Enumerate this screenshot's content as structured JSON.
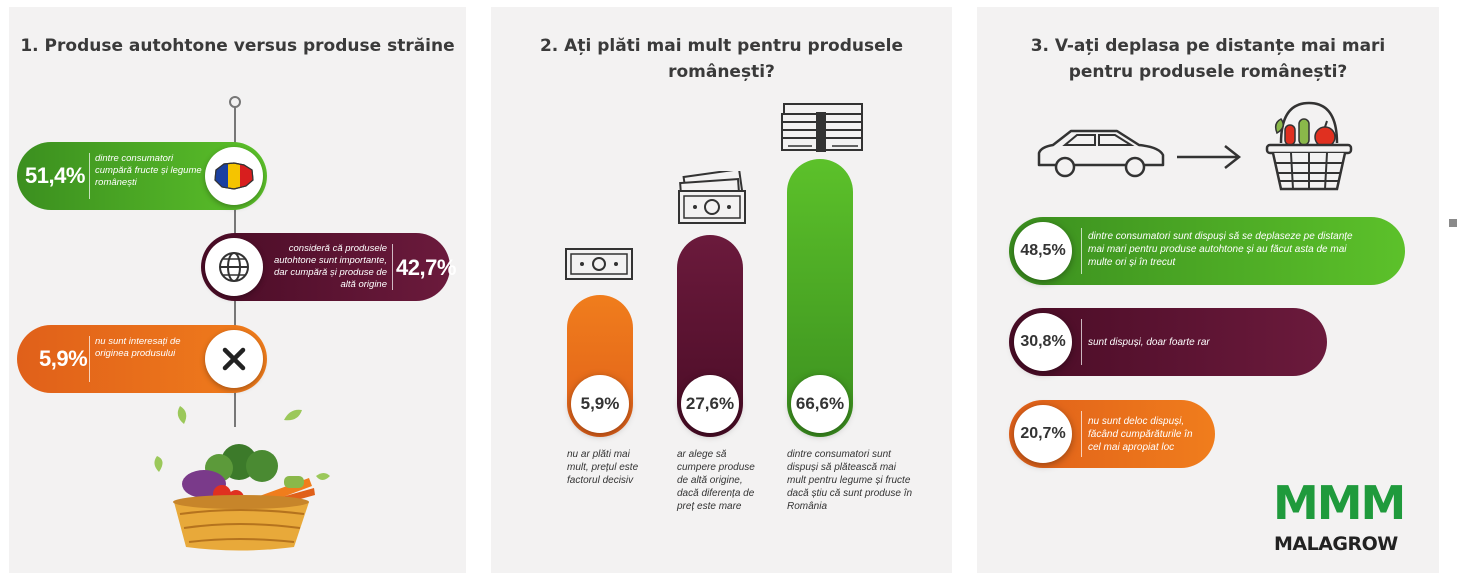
{
  "panel1": {
    "title": "1. Produse autohtone versus produse străine",
    "items": [
      {
        "pct": "51,4%",
        "text": "dintre consumatori cumpără fructe și legume românești",
        "icon": "romania-map-icon",
        "color": "#4caf24"
      },
      {
        "pct": "42,7%",
        "text": "consideră că produsele autohtone sunt importante, dar cumpără și produse de altă origine",
        "icon": "globe-icon",
        "color": "#5c1232"
      },
      {
        "pct": "5,9%",
        "text": "nu sunt interesați de originea produsului",
        "icon": "close-icon",
        "color": "#eb711b"
      }
    ]
  },
  "panel2": {
    "title": "2. Ați plăti mai mult pentru produsele românești?",
    "bars": [
      {
        "pct": "5,9%",
        "value": 5.9,
        "caption": "nu ar plăti mai mult, prețul este factorul decisiv",
        "icon": "banknote-icon",
        "color": "#eb711b"
      },
      {
        "pct": "27,6%",
        "value": 27.6,
        "caption": "ar alege să cumpere produse de altă origine, dacă diferența de preț este mare",
        "icon": "banknotes-icon",
        "color": "#5c1232"
      },
      {
        "pct": "66,6%",
        "value": 66.6,
        "caption": "dintre consumatori sunt dispuși să plătească mai mult pentru legume și fructe dacă știu că sunt produse în România",
        "icon": "money-stack-icon",
        "color": "#4caf24"
      }
    ]
  },
  "panel3": {
    "title": "3. V-ați deplasa pe distanțe mai mari pentru produsele românești?",
    "items": [
      {
        "pct": "48,5%",
        "value": 48.5,
        "text": "dintre consumatori sunt dispuși să se deplaseze pe distanțe mai mari pentru produse autohtone și au făcut asta de mai multe ori și în trecut",
        "color": "#4caf24"
      },
      {
        "pct": "30,8%",
        "value": 30.8,
        "text": "sunt dispuși, doar foarte rar",
        "color": "#5c1232"
      },
      {
        "pct": "20,7%",
        "value": 20.7,
        "text": "nu sunt deloc dispuși, făcând cumpărăturile în cel mai apropiat loc",
        "color": "#eb711b"
      }
    ],
    "icons": [
      "car-icon",
      "arrow-right-icon",
      "basket-icon"
    ]
  },
  "logo": {
    "top": "MMM",
    "bottom": "MALAGROW",
    "color": "#1f9a3c"
  }
}
